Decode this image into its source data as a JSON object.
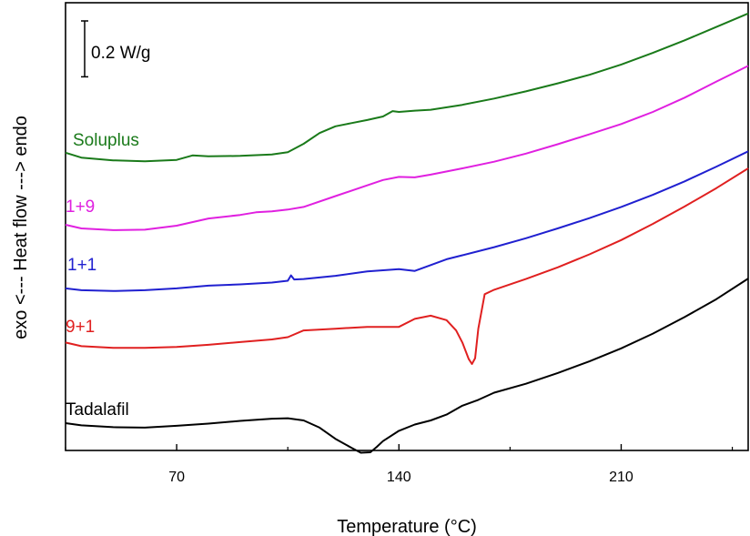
{
  "chart_data": {
    "type": "line",
    "title": "",
    "xlabel": "Temperature (°C)",
    "ylabel": "exo <--- Heat flow ---> endo",
    "xlim": [
      35,
      250
    ],
    "ylim": [
      0,
      100
    ],
    "x_ticks": [
      70,
      140,
      210
    ],
    "y_ticks": [],
    "grid": false,
    "legend": "none",
    "scale_bar": {
      "label": "0.2 W/g",
      "value": 3.9
    },
    "series": [
      {
        "name": "Soluplus",
        "color": "#1a7a1a",
        "x": [
          35,
          40,
          50,
          60,
          70,
          75,
          80,
          90,
          100,
          105,
          110,
          115,
          120,
          125,
          130,
          135,
          138,
          140,
          145,
          150,
          160,
          170,
          180,
          190,
          200,
          210,
          220,
          230,
          240,
          250
        ],
        "y": [
          66.5,
          65.4,
          64.8,
          64.6,
          64.9,
          65.9,
          65.7,
          65.8,
          66.1,
          66.6,
          68.5,
          70.9,
          72.4,
          73.1,
          73.8,
          74.6,
          75.8,
          75.6,
          75.9,
          76.1,
          77.2,
          78.6,
          80.2,
          82.0,
          83.9,
          86.2,
          88.8,
          91.6,
          94.6,
          97.6
        ]
      },
      {
        "name": "1+9",
        "color": "#e020e0",
        "x": [
          35,
          40,
          50,
          60,
          70,
          80,
          90,
          95,
          100,
          105,
          110,
          120,
          130,
          135,
          140,
          145,
          150,
          160,
          170,
          180,
          190,
          200,
          210,
          220,
          230,
          240,
          250
        ],
        "y": [
          50.4,
          49.6,
          49.2,
          49.3,
          50.2,
          51.8,
          52.6,
          53.2,
          53.4,
          53.8,
          54.4,
          56.8,
          59.2,
          60.4,
          61.1,
          61.0,
          61.6,
          63.0,
          64.5,
          66.3,
          68.4,
          70.6,
          72.9,
          75.6,
          78.8,
          82.4,
          85.9
        ]
      },
      {
        "name": "1+1",
        "color": "#2020d0",
        "x": [
          35,
          40,
          50,
          60,
          70,
          80,
          90,
          100,
          105,
          106,
          107,
          110,
          120,
          130,
          140,
          145,
          150,
          155,
          160,
          170,
          180,
          190,
          200,
          210,
          220,
          230,
          240,
          250
        ],
        "y": [
          36.2,
          35.8,
          35.6,
          35.8,
          36.2,
          36.8,
          37.1,
          37.5,
          37.9,
          39.1,
          38.2,
          38.3,
          39.0,
          40.0,
          40.5,
          40.1,
          41.4,
          42.7,
          43.6,
          45.4,
          47.4,
          49.6,
          51.9,
          54.4,
          57.1,
          60.1,
          63.4,
          66.8
        ]
      },
      {
        "name": "9+1",
        "color": "#e02020",
        "x": [
          35,
          40,
          50,
          60,
          70,
          80,
          90,
          100,
          105,
          110,
          120,
          130,
          140,
          145,
          150,
          155,
          158,
          160,
          162,
          163,
          164,
          165,
          167,
          170,
          180,
          190,
          200,
          210,
          220,
          230,
          240,
          250
        ],
        "y": [
          24.1,
          23.3,
          22.9,
          22.9,
          23.1,
          23.6,
          24.2,
          24.8,
          25.3,
          26.8,
          27.2,
          27.6,
          27.6,
          29.4,
          30.1,
          29.1,
          26.8,
          24.1,
          20.4,
          19.3,
          20.6,
          27.2,
          34.9,
          35.9,
          38.3,
          40.9,
          43.8,
          47.0,
          50.6,
          54.5,
          58.6,
          63.0
        ]
      },
      {
        "name": "Tadalafil",
        "color": "#000000",
        "x": [
          35,
          40,
          50,
          60,
          70,
          80,
          90,
          100,
          105,
          110,
          115,
          120,
          125,
          128,
          131,
          133,
          135,
          140,
          145,
          150,
          155,
          160,
          165,
          170,
          180,
          190,
          200,
          210,
          220,
          230,
          240,
          250
        ],
        "y": [
          6.1,
          5.6,
          5.2,
          5.1,
          5.5,
          6.0,
          6.6,
          7.1,
          7.2,
          6.7,
          5.1,
          2.6,
          0.6,
          -0.5,
          -0.4,
          0.8,
          2.1,
          4.4,
          5.8,
          6.7,
          8.0,
          10.0,
          11.3,
          12.9,
          14.9,
          17.3,
          19.9,
          22.8,
          26.1,
          29.8,
          33.8,
          38.4
        ]
      }
    ]
  }
}
